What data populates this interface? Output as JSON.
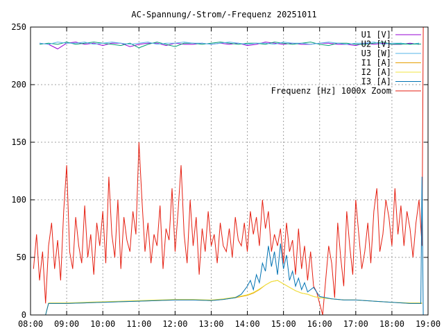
{
  "chart_data": {
    "type": "line",
    "title": "AC-Spannung/-Strom/-Frequenz 20251011",
    "xlabel": "",
    "ylabel": "",
    "xlim": [
      "08:00",
      "19:00"
    ],
    "ylim": [
      0,
      250
    ],
    "x_ticks": [
      "08:00",
      "09:00",
      "10:00",
      "11:00",
      "12:00",
      "13:00",
      "14:00",
      "15:00",
      "16:00",
      "17:00",
      "18:00",
      "19:00"
    ],
    "y_ticks": [
      "0",
      "50",
      "100",
      "150",
      "200",
      "250"
    ],
    "grid": true,
    "legend_position": "top-right",
    "colors": {
      "U1": "#9400d3",
      "U2": "#009e73",
      "U3": "#56b4e9",
      "I1": "#e69f00",
      "I2": "#f0e442",
      "I3": "#0072b2",
      "F": "#e51e10"
    },
    "series": [
      {
        "id": "U1",
        "name": "U1 [V]",
        "x": [
          "08:15",
          "08:30",
          "08:45",
          "09:00",
          "09:15",
          "09:30",
          "09:45",
          "10:00",
          "10:15",
          "10:30",
          "10:45",
          "11:00",
          "11:15",
          "11:30",
          "11:45",
          "12:00",
          "12:15",
          "12:30",
          "12:45",
          "13:00",
          "13:15",
          "13:30",
          "13:45",
          "14:00",
          "14:15",
          "14:30",
          "14:45",
          "15:00",
          "15:15",
          "15:30",
          "15:45",
          "16:00",
          "16:15",
          "16:30",
          "16:45",
          "17:00",
          "17:15",
          "17:30",
          "17:45",
          "18:00",
          "18:15",
          "18:30",
          "18:45"
        ],
        "y": [
          236,
          235,
          231,
          236,
          237,
          235,
          236,
          234,
          236,
          236,
          233,
          235,
          236,
          236,
          234,
          236,
          235,
          235,
          236,
          235,
          236,
          235,
          236,
          234,
          235,
          237,
          236,
          235,
          236,
          235,
          235,
          236,
          236,
          235,
          235,
          234,
          236,
          235,
          236,
          235,
          235,
          236,
          235
        ]
      },
      {
        "id": "U2",
        "name": "U2 [V]",
        "x": [
          "08:15",
          "08:30",
          "08:45",
          "09:00",
          "09:15",
          "09:30",
          "09:45",
          "10:00",
          "10:15",
          "10:30",
          "10:45",
          "11:00",
          "11:15",
          "11:30",
          "11:45",
          "12:00",
          "12:15",
          "12:30",
          "12:45",
          "13:00",
          "13:15",
          "13:30",
          "13:45",
          "14:00",
          "14:15",
          "14:30",
          "14:45",
          "15:00",
          "15:15",
          "15:30",
          "15:45",
          "16:00",
          "16:15",
          "16:30",
          "16:45",
          "17:00",
          "17:15",
          "17:30",
          "17:45",
          "18:00",
          "18:15",
          "18:30",
          "18:45"
        ],
        "y": [
          235,
          236,
          235,
          237,
          235,
          236,
          237,
          236,
          235,
          234,
          236,
          232,
          235,
          237,
          235,
          233,
          236,
          236,
          235,
          236,
          237,
          236,
          235,
          236,
          236,
          235,
          237,
          236,
          235,
          236,
          237,
          235,
          234,
          236,
          236,
          235,
          235,
          236,
          237,
          235,
          236,
          235,
          236
        ]
      },
      {
        "id": "U3",
        "name": "U3 [W]",
        "x": [
          "08:15",
          "08:30",
          "08:45",
          "09:00",
          "09:15",
          "09:30",
          "09:45",
          "10:00",
          "10:15",
          "10:30",
          "10:45",
          "11:00",
          "11:15",
          "11:30",
          "11:45",
          "12:00",
          "12:15",
          "12:30",
          "12:45",
          "13:00",
          "13:15",
          "13:30",
          "13:45",
          "14:00",
          "14:15",
          "14:30",
          "14:45",
          "15:00",
          "15:15",
          "15:30",
          "15:45",
          "16:00",
          "16:15",
          "16:30",
          "16:45",
          "17:00",
          "17:15",
          "17:30",
          "17:45",
          "18:00",
          "18:15",
          "18:30",
          "18:45"
        ],
        "y": [
          236,
          235,
          237,
          236,
          236,
          237,
          235,
          236,
          237,
          236,
          235,
          236,
          237,
          235,
          236,
          236,
          237,
          236,
          236,
          235,
          236,
          237,
          236,
          235,
          236,
          236,
          235,
          237,
          236,
          236,
          235,
          236,
          237,
          236,
          235,
          236,
          236,
          237,
          235,
          236,
          236,
          235,
          236
        ]
      },
      {
        "id": "I1",
        "name": "I1 [A]",
        "x": [
          "08:25",
          "08:30",
          "09:00",
          "09:30",
          "10:00",
          "10:30",
          "11:00",
          "11:30",
          "12:00",
          "12:30",
          "13:00",
          "13:20",
          "13:40",
          "14:00",
          "14:10",
          "14:20",
          "14:30",
          "14:40",
          "14:50",
          "15:00",
          "15:10",
          "15:20",
          "15:30",
          "15:40",
          "15:50",
          "16:00",
          "16:20",
          "16:40",
          "17:00",
          "17:30",
          "18:00",
          "18:30",
          "18:50"
        ],
        "y": [
          0,
          10,
          10,
          10.5,
          11,
          11.5,
          12,
          12.5,
          13,
          13,
          12.5,
          13.5,
          15,
          17,
          19,
          22,
          26,
          29,
          30,
          27,
          24,
          21,
          19,
          18,
          16,
          15,
          14,
          13,
          13,
          12,
          11,
          10,
          10
        ]
      },
      {
        "id": "I2",
        "name": "I2 [A]",
        "x": [
          "08:25",
          "08:30",
          "09:00",
          "09:30",
          "10:00",
          "10:30",
          "11:00",
          "11:30",
          "12:00",
          "12:30",
          "13:00",
          "13:20",
          "13:40",
          "14:00",
          "14:10",
          "14:20",
          "14:30",
          "14:40",
          "14:50",
          "15:00",
          "15:10",
          "15:20",
          "15:30",
          "15:40",
          "15:50",
          "16:00",
          "16:20",
          "16:40",
          "17:00",
          "17:30",
          "18:00",
          "18:30",
          "18:50"
        ],
        "y": [
          0,
          10.5,
          10.5,
          11,
          11.5,
          12,
          12.5,
          13,
          13.5,
          13.5,
          13,
          14,
          15.5,
          17.5,
          19.5,
          22.5,
          26,
          29,
          30,
          27,
          24,
          21,
          19,
          18,
          16,
          15,
          14,
          13,
          13,
          12,
          11,
          10.5,
          10.5
        ]
      },
      {
        "id": "I3",
        "name": "I3 [A]",
        "x": [
          "08:20",
          "08:25",
          "08:30",
          "09:00",
          "09:30",
          "10:00",
          "10:30",
          "11:00",
          "11:30",
          "12:00",
          "12:30",
          "13:00",
          "13:20",
          "13:40",
          "13:50",
          "14:00",
          "14:05",
          "14:10",
          "14:15",
          "14:20",
          "14:25",
          "14:30",
          "14:35",
          "14:40",
          "14:45",
          "14:50",
          "14:55",
          "15:00",
          "15:05",
          "15:10",
          "15:15",
          "15:20",
          "15:25",
          "15:30",
          "15:35",
          "15:40",
          "15:50",
          "16:00",
          "16:20",
          "16:40",
          "17:00",
          "17:30",
          "18:00",
          "18:30",
          "18:48",
          "18:50",
          "18:52"
        ],
        "y": [
          0,
          0,
          10,
          10,
          10.5,
          11,
          11.5,
          12,
          12.5,
          13,
          13,
          12.5,
          13.5,
          15,
          18,
          25,
          30,
          22,
          35,
          28,
          45,
          38,
          60,
          42,
          55,
          35,
          62,
          40,
          52,
          30,
          38,
          25,
          32,
          22,
          28,
          20,
          24,
          16,
          14,
          13,
          13,
          12,
          11,
          10,
          10,
          120,
          0
        ]
      },
      {
        "id": "F",
        "name": "Frequenz [Hz] 1000x Zoom",
        "x": [
          "08:05",
          "08:10",
          "08:15",
          "08:20",
          "08:25",
          "08:30",
          "08:35",
          "08:40",
          "08:45",
          "08:50",
          "08:55",
          "09:00",
          "09:05",
          "09:10",
          "09:15",
          "09:20",
          "09:25",
          "09:30",
          "09:35",
          "09:40",
          "09:45",
          "09:50",
          "09:55",
          "10:00",
          "10:05",
          "10:10",
          "10:15",
          "10:20",
          "10:25",
          "10:30",
          "10:35",
          "10:40",
          "10:45",
          "10:50",
          "10:55",
          "11:00",
          "11:05",
          "11:10",
          "11:15",
          "11:20",
          "11:25",
          "11:30",
          "11:35",
          "11:40",
          "11:45",
          "11:50",
          "11:55",
          "12:00",
          "12:05",
          "12:10",
          "12:15",
          "12:20",
          "12:25",
          "12:30",
          "12:35",
          "12:40",
          "12:45",
          "12:50",
          "12:55",
          "13:00",
          "13:05",
          "13:10",
          "13:15",
          "13:20",
          "13:25",
          "13:30",
          "13:35",
          "13:40",
          "13:45",
          "13:50",
          "13:55",
          "14:00",
          "14:05",
          "14:10",
          "14:15",
          "14:20",
          "14:25",
          "14:30",
          "14:35",
          "14:40",
          "14:45",
          "14:50",
          "14:55",
          "15:00",
          "15:05",
          "15:10",
          "15:15",
          "15:20",
          "15:25",
          "15:30",
          "15:35",
          "15:40",
          "15:45",
          "15:50",
          "15:55",
          "16:00",
          "16:05",
          "16:10",
          "16:15",
          "16:20",
          "16:25",
          "16:30",
          "16:35",
          "16:40",
          "16:45",
          "16:50",
          "16:55",
          "17:00",
          "17:05",
          "17:10",
          "17:15",
          "17:20",
          "17:25",
          "17:30",
          "17:35",
          "17:40",
          "17:45",
          "17:50",
          "17:55",
          "18:00",
          "18:05",
          "18:10",
          "18:15",
          "18:20",
          "18:25",
          "18:30",
          "18:35",
          "18:40",
          "18:45",
          "18:50",
          "18:52"
        ],
        "y": [
          40,
          70,
          30,
          55,
          10,
          60,
          80,
          40,
          65,
          30,
          90,
          130,
          55,
          40,
          85,
          60,
          45,
          95,
          50,
          70,
          35,
          80,
          60,
          90,
          45,
          120,
          70,
          50,
          100,
          40,
          85,
          65,
          55,
          90,
          70,
          150,
          100,
          55,
          80,
          45,
          70,
          60,
          95,
          40,
          75,
          65,
          110,
          55,
          90,
          130,
          70,
          45,
          100,
          60,
          85,
          35,
          75,
          55,
          90,
          60,
          70,
          45,
          80,
          60,
          55,
          75,
          50,
          85,
          65,
          60,
          80,
          55,
          90,
          70,
          85,
          60,
          100,
          75,
          90,
          55,
          70,
          60,
          75,
          45,
          80,
          55,
          65,
          35,
          75,
          40,
          60,
          30,
          55,
          25,
          20,
          10,
          0,
          30,
          60,
          45,
          15,
          80,
          50,
          25,
          90,
          60,
          35,
          100,
          70,
          40,
          55,
          80,
          45,
          90,
          110,
          55,
          70,
          100,
          85,
          60,
          110,
          70,
          95,
          60,
          90,
          75,
          50,
          80,
          100,
          60,
          250
        ]
      }
    ]
  }
}
